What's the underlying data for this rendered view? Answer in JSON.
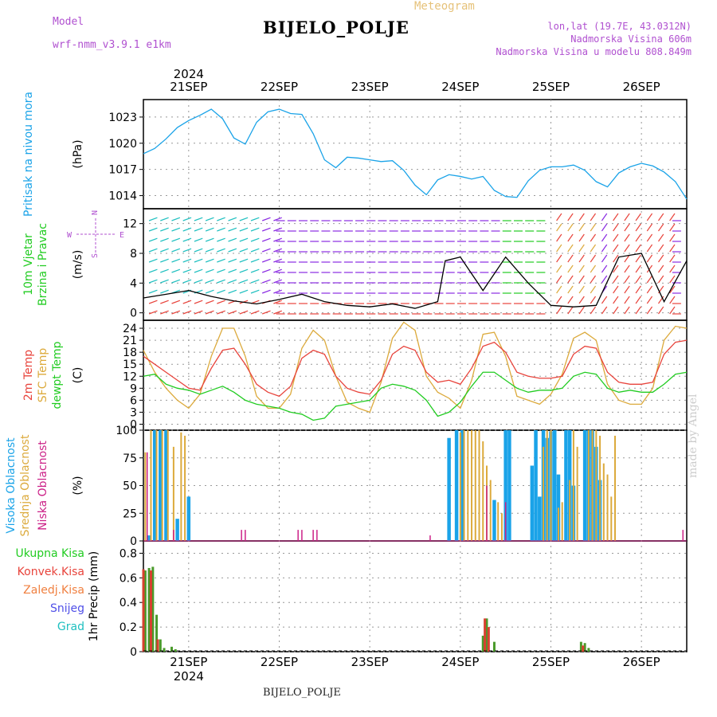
{
  "header": {
    "title": "BIJELO_POLJE",
    "meteogram": "Meteogram",
    "model_label": "Model",
    "model_name": "wrf-nmm_v3.9.1 e1km",
    "lonlat": "lon,lat (19.7E, 43.0312N)",
    "altitude": "Nadmorska Visina 606m",
    "model_altitude": "Nadmorska Visina u modelu 808.849m"
  },
  "footer": {
    "station": "BIJELO_POLJE",
    "credit": "made by Angel"
  },
  "colors": {
    "pressure": "#1aa3e8",
    "wind_speed": "#000000",
    "temp2m": "#e8443c",
    "sfc_temp": "#dcaa3c",
    "dewpoint": "#22cc22",
    "high_cloud": "#1aa3e8",
    "mid_cloud": "#dcaa3c",
    "low_cloud": "#cc2288",
    "precip_total": "#4a9a2a",
    "precip_conv": "#d84030",
    "frame": "#000000"
  },
  "chart_data": [
    {
      "type": "line",
      "panel": "pressure",
      "ylabel": "(hPa)",
      "side_labels": [
        "Pritisak na nivou mora"
      ],
      "ylim": [
        1012.5,
        1025
      ],
      "yticks": [
        1014,
        1017,
        1020,
        1023
      ],
      "x_unit": "hours from 2024-09-20 12:00",
      "date_ticks": [
        {
          "label": "21SEP",
          "x": 12
        },
        {
          "label": "22SEP",
          "x": 36
        },
        {
          "label": "23SEP",
          "x": 60
        },
        {
          "label": "24SEP",
          "x": 84
        },
        {
          "label": "25SEP",
          "x": 108
        },
        {
          "label": "26SEP",
          "x": 132
        }
      ],
      "year_label": "2024",
      "series": [
        {
          "x": [
            0,
            3,
            6,
            9,
            12,
            15,
            18,
            21,
            24,
            27,
            30,
            33,
            36,
            39,
            42,
            45,
            48,
            51,
            54,
            57,
            60,
            63,
            66,
            69,
            72,
            75,
            78,
            81,
            84,
            87,
            90,
            93,
            96,
            99,
            102,
            105,
            108,
            111,
            114,
            117,
            120,
            123,
            126,
            129,
            132,
            135,
            138,
            141,
            144
          ],
          "values": [
            1018.8,
            1019.4,
            1020.5,
            1021.8,
            1022.6,
            1023.2,
            1023.9,
            1022.8,
            1020.6,
            1019.9,
            1022.4,
            1023.6,
            1023.9,
            1023.4,
            1023.3,
            1021.1,
            1018.1,
            1017.2,
            1018.4,
            1018.3,
            1018.1,
            1017.9,
            1018.0,
            1016.9,
            1015.2,
            1014.1,
            1015.8,
            1016.4,
            1016.2,
            1015.9,
            1016.2,
            1014.6,
            1013.9,
            1013.8,
            1015.7,
            1016.9,
            1017.3,
            1017.3,
            1017.5,
            1016.9,
            1015.6,
            1015.0,
            1016.6,
            1017.3,
            1017.7,
            1017.4,
            1016.7,
            1015.6,
            1013.6
          ]
        }
      ]
    },
    {
      "type": "line",
      "panel": "wind",
      "ylabel": "(m/s)",
      "side_labels": [
        "10m Vjetar",
        "Brzina i Pravac"
      ],
      "compass": {
        "n": "N",
        "s": "S",
        "e": "E",
        "w": "W"
      },
      "ylim": [
        -1,
        14
      ],
      "yticks": [
        0,
        4,
        8,
        12
      ],
      "series": [
        {
          "name": "wind_speed",
          "x": [
            0,
            6,
            12,
            18,
            24,
            30,
            36,
            42,
            48,
            54,
            60,
            66,
            72,
            78,
            80,
            84,
            90,
            96,
            102,
            108,
            114,
            120,
            126,
            132,
            138,
            144
          ],
          "values": [
            2,
            2.5,
            3,
            2.2,
            1.6,
            1.2,
            1.8,
            2.5,
            1.5,
            1.0,
            0.8,
            1.2,
            0.6,
            1.5,
            7,
            7.5,
            3,
            7.5,
            4,
            1.0,
            0.8,
            1.0,
            7.5,
            8,
            1.5,
            7.0
          ]
        }
      ]
    },
    {
      "type": "line",
      "panel": "temperature",
      "ylabel": "(C)",
      "side_labels": [
        "2m Temp",
        "SFC Temp",
        "dewpt Temp"
      ],
      "ylim": [
        -1.5,
        26
      ],
      "yticks": [
        0,
        3,
        6,
        9,
        12,
        15,
        18,
        21,
        24
      ],
      "series": [
        {
          "name": "2m Temp",
          "x": [
            0,
            3,
            6,
            9,
            12,
            15,
            18,
            21,
            24,
            27,
            30,
            33,
            36,
            39,
            42,
            45,
            48,
            51,
            54,
            57,
            60,
            63,
            66,
            69,
            72,
            75,
            78,
            81,
            84,
            87,
            90,
            93,
            96,
            99,
            102,
            105,
            108,
            111,
            114,
            117,
            120,
            123,
            126,
            129,
            132,
            135,
            138,
            141,
            144
          ],
          "values": [
            17,
            15,
            13,
            11,
            9,
            8.5,
            14,
            18.5,
            19,
            15,
            10,
            8,
            7,
            9.5,
            16.5,
            18.5,
            17.5,
            12,
            9,
            8,
            7.5,
            11,
            17.5,
            19.5,
            18.5,
            13,
            10.5,
            11,
            10,
            14,
            19.5,
            20.5,
            18,
            13,
            12,
            11.5,
            11.5,
            12,
            17.5,
            19.5,
            19,
            13,
            10.5,
            10,
            10,
            10.5,
            17.5,
            20.5,
            21
          ]
        },
        {
          "name": "SFC Temp",
          "x": [
            0,
            3,
            6,
            9,
            12,
            15,
            18,
            21,
            24,
            27,
            30,
            33,
            36,
            39,
            42,
            45,
            48,
            51,
            54,
            57,
            60,
            63,
            66,
            69,
            72,
            75,
            78,
            81,
            84,
            87,
            90,
            93,
            96,
            99,
            102,
            105,
            108,
            111,
            114,
            117,
            120,
            123,
            126,
            129,
            132,
            135,
            138,
            141,
            144
          ],
          "values": [
            18.5,
            13,
            9,
            6,
            4,
            7.5,
            17,
            24,
            24,
            17,
            7,
            4,
            4,
            7.5,
            19,
            23.5,
            21,
            12,
            5.5,
            4,
            3,
            10.5,
            21.5,
            25.5,
            23.5,
            12,
            8,
            6.5,
            4,
            11,
            22.5,
            23,
            17,
            7,
            6,
            5,
            7.5,
            12.5,
            21.5,
            23,
            21,
            10,
            6,
            5,
            5,
            9,
            21,
            24.5,
            24
          ]
        },
        {
          "name": "dewpt Temp",
          "x": [
            0,
            3,
            6,
            9,
            12,
            15,
            18,
            21,
            24,
            27,
            30,
            33,
            36,
            39,
            42,
            45,
            48,
            51,
            54,
            57,
            60,
            63,
            66,
            69,
            72,
            75,
            78,
            81,
            84,
            87,
            90,
            93,
            96,
            99,
            102,
            105,
            108,
            111,
            114,
            117,
            120,
            123,
            126,
            129,
            132,
            135,
            138,
            141,
            144
          ],
          "values": [
            12,
            12.5,
            10,
            9,
            8.5,
            7.5,
            8.5,
            9.5,
            8,
            6,
            5,
            4.5,
            4,
            3,
            2.5,
            1,
            1.5,
            4.5,
            5,
            5.5,
            6,
            9,
            10,
            9.5,
            8.5,
            6,
            2,
            3,
            5.5,
            9.5,
            13,
            13,
            11,
            9,
            8,
            8.5,
            8.5,
            9,
            12,
            13,
            12.5,
            9,
            8,
            8.5,
            8,
            8,
            10,
            12.5,
            13
          ]
        }
      ]
    },
    {
      "type": "bar",
      "panel": "cloud",
      "ylabel": "(%)",
      "side_labels": [
        "Visoka Oblacnost",
        "Srednja Oblacnost",
        "Niska Oblacnost"
      ],
      "ylim": [
        0,
        100
      ],
      "yticks": [
        0,
        25,
        50,
        75,
        100
      ],
      "series": [
        {
          "name": "Visoka Oblacnost",
          "x": [
            1.5,
            3,
            4.5,
            6,
            9,
            12,
            81,
            83,
            84.5,
            93,
            96,
            97,
            103,
            104,
            105,
            106,
            107,
            108,
            109,
            110,
            112,
            113,
            114,
            117,
            118,
            119,
            120,
            121
          ],
          "values": [
            5,
            100,
            100,
            100,
            20,
            40,
            93,
            100,
            100,
            37,
            100,
            100,
            68,
            100,
            40,
            100,
            93,
            99,
            100,
            60,
            100,
            100,
            50,
            100,
            100,
            100,
            85,
            55
          ]
        },
        {
          "name": "Srednja Oblacnost",
          "x": [
            0.5,
            2,
            3.5,
            5,
            6.5,
            8,
            10,
            11,
            84,
            85,
            86,
            87,
            88,
            89,
            90,
            91,
            92,
            94,
            95,
            106,
            107,
            108,
            110,
            111,
            113,
            114,
            115,
            118,
            119,
            120,
            121,
            122,
            123,
            124,
            125
          ],
          "values": [
            80,
            100,
            100,
            100,
            100,
            85,
            98,
            95,
            98,
            100,
            100,
            100,
            100,
            100,
            90,
            68,
            55,
            35,
            25,
            85,
            100,
            100,
            30,
            35,
            55,
            100,
            85,
            100,
            100,
            100,
            95,
            70,
            60,
            40,
            95
          ]
        },
        {
          "name": "Niska Oblacnost",
          "x": [
            1,
            8,
            26,
            27,
            41,
            42,
            45,
            46,
            76,
            91,
            96,
            143
          ],
          "values": [
            80,
            10,
            10,
            10,
            10,
            10,
            10,
            10,
            5,
            50,
            35,
            10
          ]
        }
      ]
    },
    {
      "type": "bar",
      "panel": "precip",
      "ylabel": "1hr Precip (mm)",
      "side_labels": [
        "Ukupna Kisa",
        "Konvek.Kisa",
        "Zaledj.Kisa",
        "Snijeg",
        "Grad"
      ],
      "ylim": [
        0,
        0.9
      ],
      "yticks": [
        0,
        0.2,
        0.4,
        0.6,
        0.8
      ],
      "series": [
        {
          "name": "Ukupna Kisa",
          "x": [
            0.5,
            1.5,
            2.5,
            3.5,
            4.5,
            5.5,
            7.5,
            8.5,
            90,
            91,
            93,
            116,
            117,
            118
          ],
          "values": [
            0.66,
            0.68,
            0.69,
            0.3,
            0.1,
            0.03,
            0.04,
            0.02,
            0.13,
            0.27,
            0.08,
            0.08,
            0.07,
            0.03
          ]
        },
        {
          "name": "Konvek.Kisa",
          "x": [
            0,
            2,
            3.8,
            90.5,
            91.5,
            116.5
          ],
          "values": [
            0.67,
            0.66,
            0.1,
            0.27,
            0.2,
            0.05
          ]
        }
      ]
    }
  ]
}
